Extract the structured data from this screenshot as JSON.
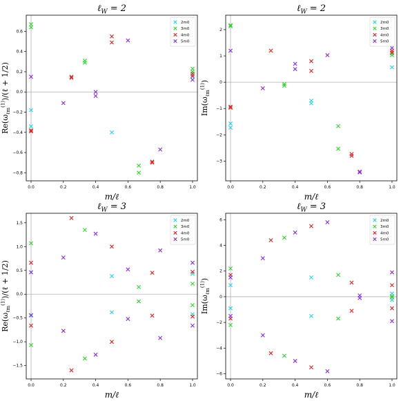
{
  "chart_data": [
    {
      "type": "scatter",
      "title": "ℓ_W = 2",
      "xlabel": "m/ℓ",
      "ylabel": "Re(ω_ℓm^(1))/(ℓ + 1/2)",
      "xlim": [
        -0.03,
        1.03
      ],
      "ylim": [
        -0.88,
        0.76
      ],
      "xticks": [
        0.0,
        0.2,
        0.4,
        0.6,
        0.8,
        1.0
      ],
      "yticks": [
        -0.8,
        -0.6,
        -0.4,
        -0.2,
        0.0,
        0.2,
        0.4,
        0.6
      ],
      "xtick_labels": [
        "0.0",
        "0.2",
        "0.4",
        "0.6",
        "0.8",
        "1.0"
      ],
      "ytick_labels": [
        "−0.8",
        "−0.6",
        "−0.4",
        "−0.2",
        "0.0",
        "0.2",
        "0.4",
        "0.6"
      ],
      "hline": 0,
      "vline": 0,
      "legend_position": "top-right",
      "series": [
        {
          "name": "2m0",
          "color": "#22d6e6",
          "x": [
            0.0,
            0.0,
            0.5,
            1.0,
            1.0
          ],
          "y": [
            -0.18,
            -0.34,
            -0.4,
            0.2,
            0.15
          ]
        },
        {
          "name": "3m0",
          "color": "#2ed52e",
          "x": [
            0.0,
            0.0,
            0.333,
            0.333,
            0.667,
            0.667,
            1.0,
            1.0
          ],
          "y": [
            0.67,
            0.64,
            0.31,
            0.29,
            -0.73,
            -0.8,
            0.23,
            0.2
          ]
        },
        {
          "name": "4m0",
          "color": "#e02222",
          "x": [
            0.0,
            0.0,
            0.25,
            0.25,
            0.5,
            0.5,
            0.75,
            0.75,
            1.0,
            1.0
          ],
          "y": [
            -0.38,
            -0.39,
            0.15,
            0.14,
            0.55,
            0.49,
            -0.7,
            -0.69,
            0.18,
            0.16
          ]
        },
        {
          "name": "5m0",
          "color": "#8a2be2",
          "x": [
            0.0,
            0.2,
            0.4,
            0.4,
            0.6,
            0.8,
            1.0
          ],
          "y": [
            0.15,
            -0.11,
            0.0,
            -0.04,
            0.51,
            -0.57,
            0.12
          ]
        }
      ]
    },
    {
      "type": "scatter",
      "title": "ℓ_W = 2",
      "xlabel": "m/ℓ",
      "ylabel": "Im(ω_ℓm^(1))",
      "xlim": [
        -0.03,
        1.03
      ],
      "ylim": [
        -3.75,
        2.55
      ],
      "xticks": [
        0.0,
        0.2,
        0.4,
        0.6,
        0.8,
        1.0
      ],
      "yticks": [
        -3,
        -2,
        -1,
        0,
        1,
        2
      ],
      "xtick_labels": [
        "0.0",
        "0.2",
        "0.4",
        "0.6",
        "0.8",
        "1.0"
      ],
      "ytick_labels": [
        "−3",
        "−2",
        "−1",
        "0",
        "1",
        "2"
      ],
      "hline": 0,
      "vline": 0,
      "legend_position": "top-right",
      "series": [
        {
          "name": "2m0",
          "color": "#22d6e6",
          "x": [
            0.0,
            0.0,
            0.5,
            0.5,
            1.0,
            1.0
          ],
          "y": [
            -1.57,
            -1.73,
            -0.7,
            -0.8,
            1.3,
            0.57
          ]
        },
        {
          "name": "3m0",
          "color": "#2ed52e",
          "x": [
            0.0,
            0.0,
            0.333,
            0.333,
            0.667,
            0.667,
            1.0,
            1.0
          ],
          "y": [
            2.17,
            2.13,
            -0.07,
            -0.13,
            -1.67,
            -2.53,
            1.1,
            1.03
          ]
        },
        {
          "name": "4m0",
          "color": "#e02222",
          "x": [
            0.0,
            0.0,
            0.25,
            0.5,
            0.5,
            0.75,
            0.75,
            1.0,
            1.0
          ],
          "y": [
            -0.93,
            -0.97,
            1.2,
            0.8,
            0.43,
            -2.73,
            -2.8,
            1.2,
            1.13
          ]
        },
        {
          "name": "5m0",
          "color": "#8a2be2",
          "x": [
            0.0,
            0.2,
            0.4,
            0.4,
            0.6,
            0.8,
            0.8,
            1.0
          ],
          "y": [
            1.2,
            -0.23,
            0.7,
            0.5,
            1.03,
            -3.4,
            -3.43,
            1.3
          ]
        }
      ]
    },
    {
      "type": "scatter",
      "title": "ℓ_W = 3",
      "xlabel": "m/ℓ",
      "ylabel": "Re(ω_ℓm^(1))/(ℓ + 1/2)",
      "xlim": [
        -0.03,
        1.03
      ],
      "ylim": [
        -1.78,
        1.7
      ],
      "xticks": [
        0.0,
        0.2,
        0.4,
        0.6,
        0.8,
        1.0
      ],
      "yticks": [
        -1.5,
        -1.0,
        -0.5,
        0.0,
        0.5,
        1.0,
        1.5
      ],
      "xtick_labels": [
        "0.0",
        "0.2",
        "0.4",
        "0.6",
        "0.8",
        "1.0"
      ],
      "ytick_labels": [
        "−1.5",
        "−1.0",
        "−0.5",
        "0.0",
        "0.5",
        "1.0",
        "1.5"
      ],
      "hline": 0,
      "vline": 0,
      "legend_position": "top-right",
      "series": [
        {
          "name": "2m0",
          "color": "#22d6e6",
          "x": [
            0.0,
            0.0,
            0.5,
            0.5,
            1.0,
            1.0
          ],
          "y": [
            0.46,
            -0.45,
            0.38,
            -0.38,
            0.43,
            -0.42
          ]
        },
        {
          "name": "3m0",
          "color": "#2ed52e",
          "x": [
            0.0,
            0.0,
            0.333,
            0.333,
            0.667,
            0.667,
            1.0,
            1.0
          ],
          "y": [
            1.07,
            -1.07,
            1.35,
            -1.35,
            0.15,
            -0.15,
            0.22,
            -0.23
          ]
        },
        {
          "name": "4m0",
          "color": "#e02222",
          "x": [
            0.0,
            0.0,
            0.25,
            0.25,
            0.5,
            0.5,
            0.75,
            0.75,
            1.0,
            1.0
          ],
          "y": [
            0.66,
            -0.66,
            1.6,
            -1.6,
            1.0,
            -1.0,
            0.45,
            -0.45,
            0.47,
            -0.47
          ]
        },
        {
          "name": "5m0",
          "color": "#8a2be2",
          "x": [
            0.0,
            0.0,
            0.2,
            0.2,
            0.4,
            0.4,
            0.6,
            0.6,
            0.8,
            0.8,
            1.0,
            1.0
          ],
          "y": [
            0.46,
            -0.44,
            0.77,
            -0.77,
            1.27,
            -1.27,
            0.52,
            -0.52,
            0.92,
            -0.92,
            0.66,
            -0.66
          ]
        }
      ]
    },
    {
      "type": "scatter",
      "title": "ℓ_W = 3",
      "xlabel": "m/ℓ",
      "ylabel": "Im(ω_ℓm^(1))",
      "xlim": [
        -0.03,
        1.03
      ],
      "ylim": [
        -6.4,
        6.5
      ],
      "xticks": [
        0.0,
        0.2,
        0.4,
        0.6,
        0.8,
        1.0
      ],
      "yticks": [
        -6,
        -4,
        -2,
        0,
        2,
        4,
        6
      ],
      "xtick_labels": [
        "0.0",
        "0.2",
        "0.4",
        "0.6",
        "0.8",
        "1.0"
      ],
      "ytick_labels": [
        "−6",
        "−4",
        "−2",
        "0",
        "2",
        "4",
        "6"
      ],
      "hline": 0,
      "vline": 0,
      "legend_position": "top-right",
      "series": [
        {
          "name": "2m0",
          "color": "#22d6e6",
          "x": [
            0.0,
            0.0,
            0.5,
            0.5,
            1.0,
            1.0
          ],
          "y": [
            0.9,
            -0.9,
            1.5,
            -1.5,
            0.25,
            -0.25
          ]
        },
        {
          "name": "3m0",
          "color": "#2ed52e",
          "x": [
            0.0,
            0.0,
            0.333,
            0.333,
            0.667,
            0.667,
            1.0,
            1.0
          ],
          "y": [
            2.2,
            -2.2,
            4.6,
            -4.6,
            1.7,
            -1.7,
            0.05,
            -0.05
          ]
        },
        {
          "name": "4m0",
          "color": "#e02222",
          "x": [
            0.0,
            0.0,
            0.25,
            0.25,
            0.5,
            0.5,
            0.75,
            0.75,
            1.0,
            1.0
          ],
          "y": [
            1.7,
            -1.7,
            4.4,
            -4.4,
            5.5,
            -5.5,
            1.1,
            -1.1,
            0.9,
            -0.9
          ]
        },
        {
          "name": "5m0",
          "color": "#8a2be2",
          "x": [
            0.0,
            0.0,
            0.2,
            0.2,
            0.4,
            0.4,
            0.6,
            0.6,
            0.8,
            0.8,
            1.0,
            1.0
          ],
          "y": [
            1.5,
            -1.5,
            3.0,
            -3.0,
            5.0,
            -5.0,
            5.8,
            -5.8,
            0.1,
            -0.1,
            1.9,
            -1.9
          ]
        }
      ]
    }
  ]
}
